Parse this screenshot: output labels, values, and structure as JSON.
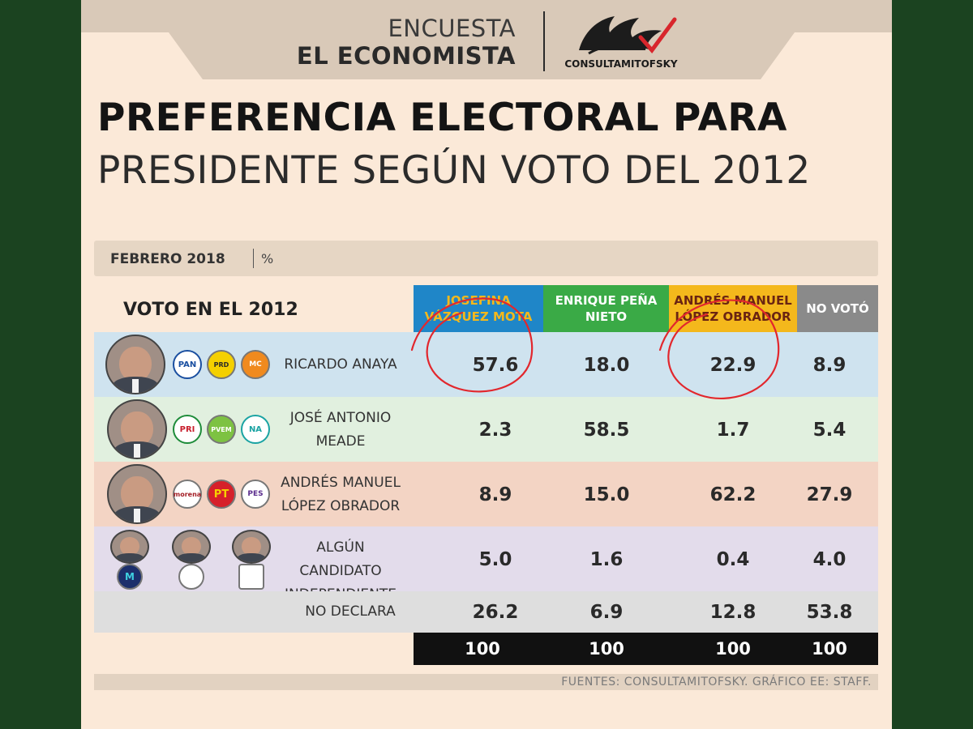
{
  "header": {
    "brand_line1": "ENCUESTA",
    "brand_line2": "EL ECONOMISTA",
    "partner_name": "CONSULTAMITOFSKY"
  },
  "title": {
    "line1": "PREFERENCIA ELECTORAL PARA",
    "line2": "PRESIDENTE SEGÚN VOTO DEL 2012"
  },
  "period": {
    "label": "FEBRERO 2018",
    "unit": "%"
  },
  "row_heading": "VOTO EN EL 2012",
  "colors": {
    "background": "#1b4320",
    "sheet": "#fbe9d8",
    "header_tab": "#d9c9b8",
    "col_vazquez_mota": "#1f86c8",
    "col_pena_nieto": "#3aaa46",
    "col_lopez_obrador": "#f4b81c",
    "col_no_voto": "#8a8a8a",
    "row_anaya": "#cfe3ef",
    "row_meade": "#e1f0df",
    "row_lopez_obrador": "#f3d4c4",
    "row_independiente": "#e3dceb",
    "row_no_declara": "#dedede",
    "annotation": "#e2272d"
  },
  "parties": {
    "anaya": [
      "PAN",
      "PRD",
      "MC"
    ],
    "meade": [
      "PRI",
      "PVEM",
      "NA"
    ],
    "lopez_obrador": [
      "morena",
      "PT",
      "PES"
    ]
  },
  "icons": {
    "logo": "mitofsky-bird-logo",
    "annotation": "red-hand-drawn-circle"
  },
  "chart_data": {
    "type": "table",
    "title": "PREFERENCIA ELECTORAL PARA PRESIDENTE SEGÚN VOTO DEL 2012",
    "subtitle": "FEBRERO 2018 | %",
    "row_header": "VOTO EN EL 2012",
    "columns": [
      {
        "label": "JOSEFINA VÁZQUEZ MOTA"
      },
      {
        "label": "ENRIQUE PEÑA NIETO"
      },
      {
        "label": "ANDRÉS MANUEL LÓPEZ OBRADOR"
      },
      {
        "label": "NO VOTÓ"
      }
    ],
    "rows": [
      {
        "label": "RICARDO ANAYA",
        "values": [
          "57.6",
          "18.0",
          "22.9",
          "8.9"
        ]
      },
      {
        "label": "JOSÉ ANTONIO MEADE",
        "values": [
          "2.3",
          "58.5",
          "1.7",
          "5.4"
        ]
      },
      {
        "label": "ANDRÉS MANUEL LÓPEZ OBRADOR",
        "values": [
          "8.9",
          "15.0",
          "62.2",
          "27.9"
        ]
      },
      {
        "label": "ALGÚN CANDIDATO INDEPENDIENTE",
        "values": [
          "5.0",
          "1.6",
          "0.4",
          "4.0"
        ]
      },
      {
        "label": "NO DECLARA",
        "values": [
          "26.2",
          "6.9",
          "12.8",
          "53.8"
        ]
      }
    ],
    "totals": [
      "100",
      "100",
      "100",
      "100"
    ],
    "source": "FUENTES: CONSULTAMITOFSKY. GRÁFICO EE: STAFF."
  }
}
